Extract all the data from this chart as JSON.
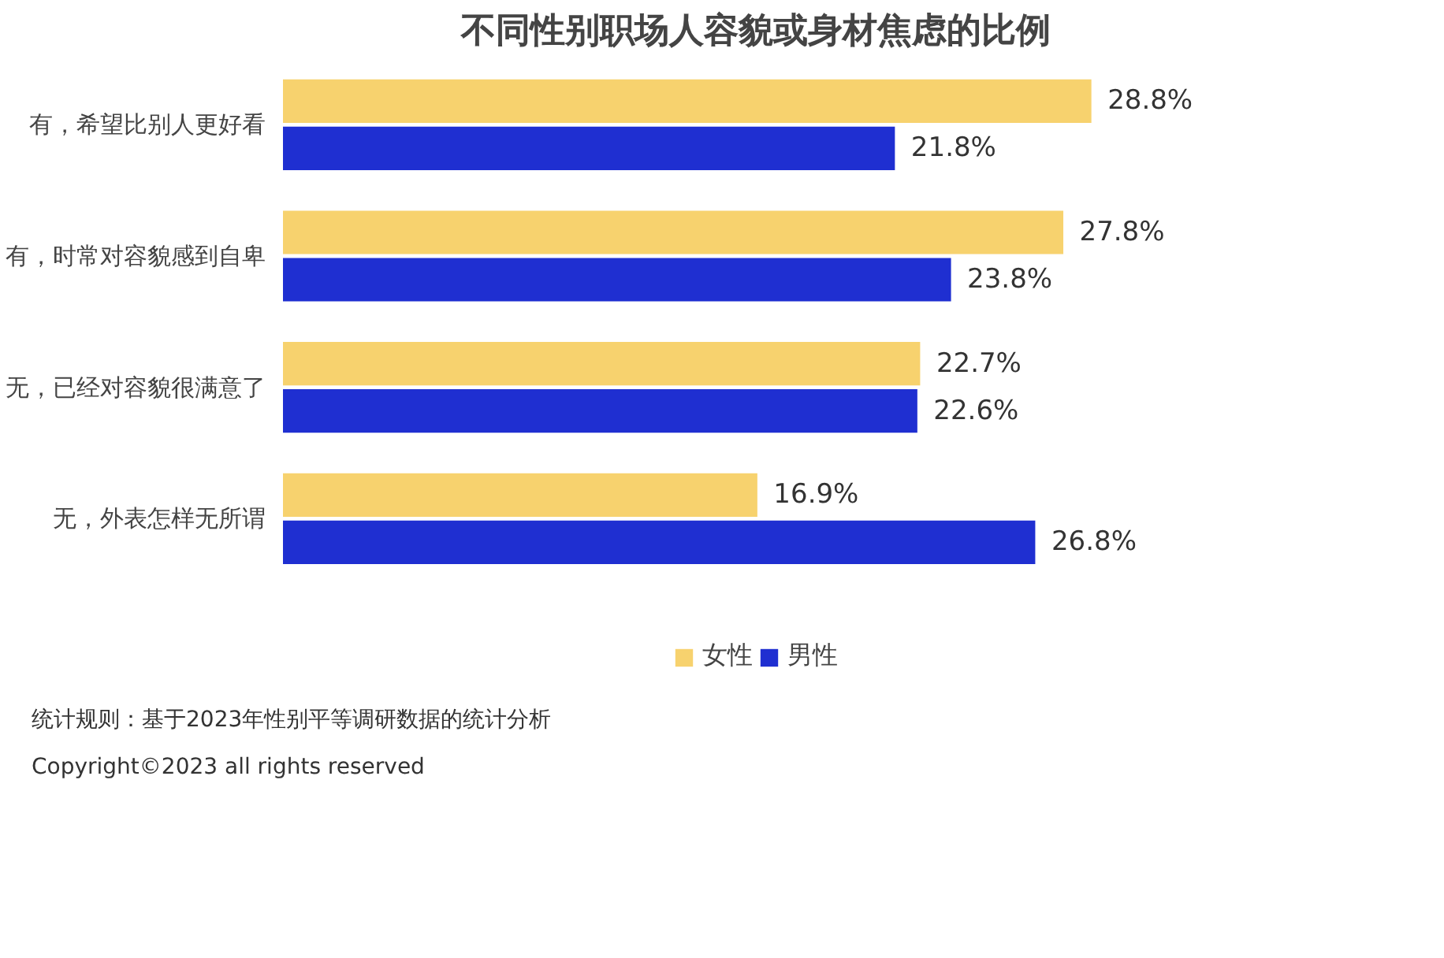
{
  "chart_data": {
    "type": "bar",
    "orientation": "horizontal",
    "title": "不同性别职场人容貌或身材焦虑的比例",
    "categories": [
      "有，希望比别人更好看",
      "有，时常对容貌感到自卑",
      "无，已经对容貌很满意了",
      "无，外表怎样无所谓"
    ],
    "series": [
      {
        "name": "女性",
        "color": "#f7d26e",
        "values": [
          28.8,
          27.8,
          22.7,
          16.9
        ],
        "value_labels": [
          "28.8%",
          "27.8%",
          "22.7%",
          "16.9%"
        ]
      },
      {
        "name": "男性",
        "color": "#1f2fd1",
        "values": [
          21.8,
          23.8,
          22.6,
          26.8
        ],
        "value_labels": [
          "21.8%",
          "23.8%",
          "22.6%",
          "26.8%"
        ]
      }
    ],
    "legend": "bottom",
    "annotations": [
      "统计规则：基于2023年性别平等调研数据的统计分析",
      "Copyright©2023 all rights reserved"
    ]
  }
}
